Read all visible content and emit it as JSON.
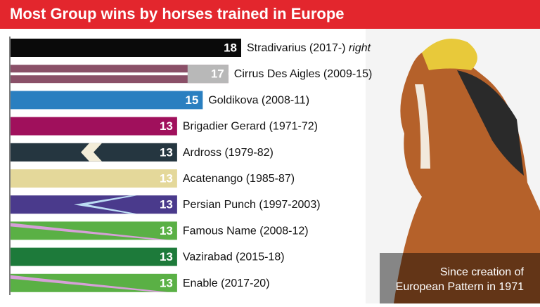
{
  "chart_data": {
    "type": "bar",
    "orientation": "horizontal",
    "title": "Most Group wins by horses trained in Europe",
    "categories": [
      "Stradivarius (2017-)",
      "Cirrus Des Aigles (2009-15)",
      "Goldikova (2008-11)",
      "Brigadier Gerard (1971-72)",
      "Ardross (1979-82)",
      "Acatenango (1985-87)",
      "Persian Punch (1997-2003)",
      "Famous Name (2008-12)",
      "Vazirabad (2015-18)",
      "Enable (2017-20)"
    ],
    "notes": [
      "right",
      null,
      null,
      null,
      null,
      null,
      null,
      null,
      null,
      null
    ],
    "values": [
      18,
      17,
      15,
      13,
      13,
      13,
      13,
      13,
      13,
      13
    ],
    "colors": [
      "#0a0a0a",
      "#8a5068",
      "#2a7fc0",
      "#a0105c",
      "#253640",
      "#e4d89a",
      "#4a3a8c",
      "#5ab045",
      "#1d7a3a",
      "#5ab045"
    ],
    "accent_colors": [
      null,
      "#b8b8b8",
      null,
      null,
      "#f2ecd8",
      null,
      "#bcdcf4",
      "#d6a0d8",
      null,
      "#d6a0d8"
    ],
    "xlim": [
      0,
      18
    ],
    "annotation": [
      "Since creation of",
      "European Pattern in 1971"
    ]
  }
}
